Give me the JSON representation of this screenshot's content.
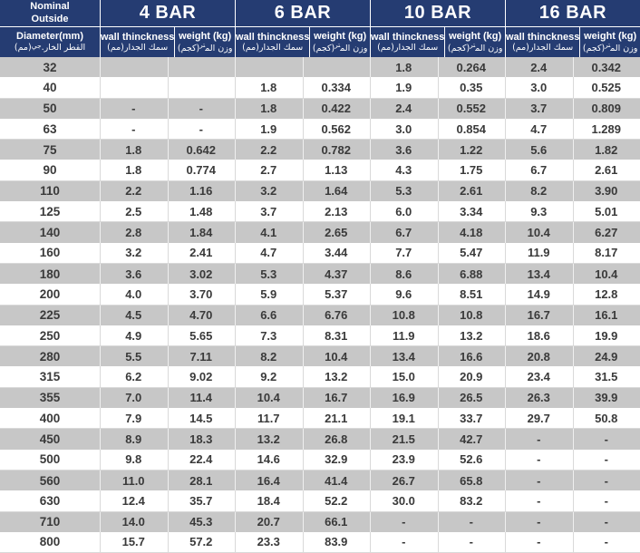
{
  "header": {
    "diameter": {
      "line1": "Nominal",
      "line2": "Outside",
      "line3": "Diameter(mm)",
      "ar_main": "القطر الخار.",
      "ar_sup": "جي",
      "ar_unit": "(مم)"
    },
    "groups": [
      {
        "label": "4 BAR"
      },
      {
        "label": "6 BAR"
      },
      {
        "label": "10 BAR"
      },
      {
        "label": "16 BAR"
      }
    ],
    "sub": {
      "thickness_en": "wall thinckness",
      "thickness_ar": "سمك الجدار(مم)",
      "weight_en": "weight (kg)",
      "weight_ar_main": "وزن الم",
      "weight_ar_sup": "تر",
      "weight_ar_unit": "(كجم)"
    }
  },
  "table": {
    "columns": [
      "Nominal Outside Diameter(mm)",
      "4 BAR wall thinckness",
      "4 BAR weight (kg)",
      "6 BAR wall thinckness",
      "6 BAR weight (kg)",
      "10 BAR wall thinckness",
      "10 BAR weight (kg)",
      "16 BAR wall thinckness",
      "16 BAR weight (kg)"
    ],
    "rows": [
      [
        "32",
        "",
        "",
        "",
        "",
        "1.8",
        "0.264",
        "2.4",
        "0.342"
      ],
      [
        "40",
        "",
        "",
        "1.8",
        "0.334",
        "1.9",
        "0.35",
        "3.0",
        "0.525"
      ],
      [
        "50",
        "-",
        "-",
        "1.8",
        "0.422",
        "2.4",
        "0.552",
        "3.7",
        "0.809"
      ],
      [
        "63",
        "-",
        "-",
        "1.9",
        "0.562",
        "3.0",
        "0.854",
        "4.7",
        "1.289"
      ],
      [
        "75",
        "1.8",
        "0.642",
        "2.2",
        "0.782",
        "3.6",
        "1.22",
        "5.6",
        "1.82"
      ],
      [
        "90",
        "1.8",
        "0.774",
        "2.7",
        "1.13",
        "4.3",
        "1.75",
        "6.7",
        "2.61"
      ],
      [
        "110",
        "2.2",
        "1.16",
        "3.2",
        "1.64",
        "5.3",
        "2.61",
        "8.2",
        "3.90"
      ],
      [
        "125",
        "2.5",
        "1.48",
        "3.7",
        "2.13",
        "6.0",
        "3.34",
        "9.3",
        "5.01"
      ],
      [
        "140",
        "2.8",
        "1.84",
        "4.1",
        "2.65",
        "6.7",
        "4.18",
        "10.4",
        "6.27"
      ],
      [
        "160",
        "3.2",
        "2.41",
        "4.7",
        "3.44",
        "7.7",
        "5.47",
        "11.9",
        "8.17"
      ],
      [
        "180",
        "3.6",
        "3.02",
        "5.3",
        "4.37",
        "8.6",
        "6.88",
        "13.4",
        "10.4"
      ],
      [
        "200",
        "4.0",
        "3.70",
        "5.9",
        "5.37",
        "9.6",
        "8.51",
        "14.9",
        "12.8"
      ],
      [
        "225",
        "4.5",
        "4.70",
        "6.6",
        "6.76",
        "10.8",
        "10.8",
        "16.7",
        "16.1"
      ],
      [
        "250",
        "4.9",
        "5.65",
        "7.3",
        "8.31",
        "11.9",
        "13.2",
        "18.6",
        "19.9"
      ],
      [
        "280",
        "5.5",
        "7.11",
        "8.2",
        "10.4",
        "13.4",
        "16.6",
        "20.8",
        "24.9"
      ],
      [
        "315",
        "6.2",
        "9.02",
        "9.2",
        "13.2",
        "15.0",
        "20.9",
        "23.4",
        "31.5"
      ],
      [
        "355",
        "7.0",
        "11.4",
        "10.4",
        "16.7",
        "16.9",
        "26.5",
        "26.3",
        "39.9"
      ],
      [
        "400",
        "7.9",
        "14.5",
        "11.7",
        "21.1",
        "19.1",
        "33.7",
        "29.7",
        "50.8"
      ],
      [
        "450",
        "8.9",
        "18.3",
        "13.2",
        "26.8",
        "21.5",
        "42.7",
        "-",
        "-"
      ],
      [
        "500",
        "9.8",
        "22.4",
        "14.6",
        "32.9",
        "23.9",
        "52.6",
        "-",
        "-"
      ],
      [
        "560",
        "11.0",
        "28.1",
        "16.4",
        "41.4",
        "26.7",
        "65.8",
        "-",
        "-"
      ],
      [
        "630",
        "12.4",
        "35.7",
        "18.4",
        "52.2",
        "30.0",
        "83.2",
        "-",
        "-"
      ],
      [
        "710",
        "14.0",
        "45.3",
        "20.7",
        "66.1",
        "-",
        "-",
        "-",
        "-"
      ],
      [
        "800",
        "15.7",
        "57.2",
        "23.3",
        "83.9",
        "-",
        "-",
        "-",
        "-"
      ]
    ]
  },
  "colors": {
    "header_bg": "#253c72",
    "header_text": "#ffffff",
    "row_alt": "#c7c7c7",
    "row_main": "#ffffff",
    "body_text": "#3a3a3a",
    "grid_line": "#d9d9d9",
    "grid_line_light": "#efefef"
  }
}
